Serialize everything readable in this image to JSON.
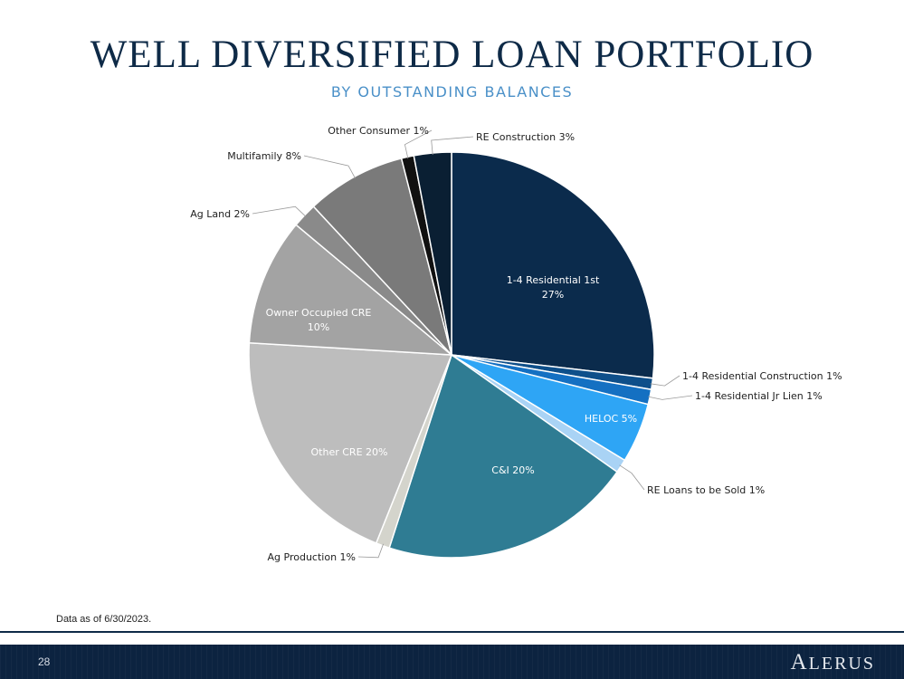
{
  "slide": {
    "title": "WELL DIVERSIFIED LOAN PORTFOLIO",
    "subtitle": "BY OUTSTANDING BALANCES",
    "footnote": "Data as of 6/30/2023.",
    "page_number": "28",
    "logo_first": "A",
    "logo_rest": "LERUS"
  },
  "chart_data": {
    "type": "pie",
    "categories": [
      "1-4 Residential 1st",
      "1-4 Residential Construction",
      "1-4 Residential Jr Lien",
      "HELOC",
      "RE Loans to be Sold",
      "C&I",
      "Ag Production",
      "Other CRE",
      "Owner Occupied CRE",
      "Ag Land",
      "Multifamily",
      "Other Consumer",
      "RE Construction"
    ],
    "values": [
      27,
      0.9,
      1.2,
      4.8,
      1.1,
      20.3,
      1.1,
      20,
      10.2,
      2,
      8,
      1,
      3
    ],
    "labels": [
      "1-4 Residential 1st|27%",
      "1-4 Residential Construction 1%",
      "1-4 Residential Jr Lien 1%",
      "HELOC 5%",
      "RE Loans to be Sold 1%",
      "C&I 20%",
      "Ag Production 1%",
      "Other CRE 20%",
      "Owner Occupied CRE|10%",
      "Ag Land 2%",
      "Multifamily 8%",
      "Other Consumer 1%",
      "RE Construction 3%"
    ],
    "colors": [
      "#0b2b4c",
      "#0e4f8a",
      "#1470c2",
      "#2ea5f5",
      "#a9d3f5",
      "#2f7c93",
      "#d4d4cc",
      "#bdbdbd",
      "#a3a3a3",
      "#8a8a8a",
      "#7a7a7a",
      "#111111",
      "#0a1f33"
    ],
    "legend": "none"
  }
}
